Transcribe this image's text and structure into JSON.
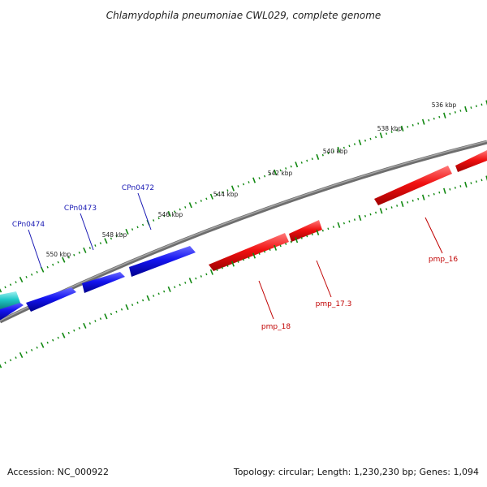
{
  "title": "Chlamydophila pneumoniae CWL029, complete genome",
  "footer": {
    "accession": "Accession: NC_000922",
    "summary": "Topology: circular; Length: 1,230,230 bp; Genes: 1,094"
  },
  "scale_labels": [
    "536 kbp",
    "538 kbp",
    "540 kbp",
    "542 kbp",
    "544 kbp",
    "546 kbp",
    "548 kbp",
    "550 kbp"
  ],
  "forward_gene_labels": [
    "CPn0472",
    "CPn0473",
    "CPn0474"
  ],
  "reverse_gene_labels": [
    "pmp_16",
    "pmp_17.3",
    "pmp_18"
  ],
  "colors": {
    "forward_genes": "#0a0adc",
    "reverse_genes": "#e60000",
    "other_genes": "#19c8c8",
    "backbone": "#808080",
    "ticks": "#118811",
    "forward_label": "#1a1ab4",
    "reverse_label": "#c00000"
  }
}
